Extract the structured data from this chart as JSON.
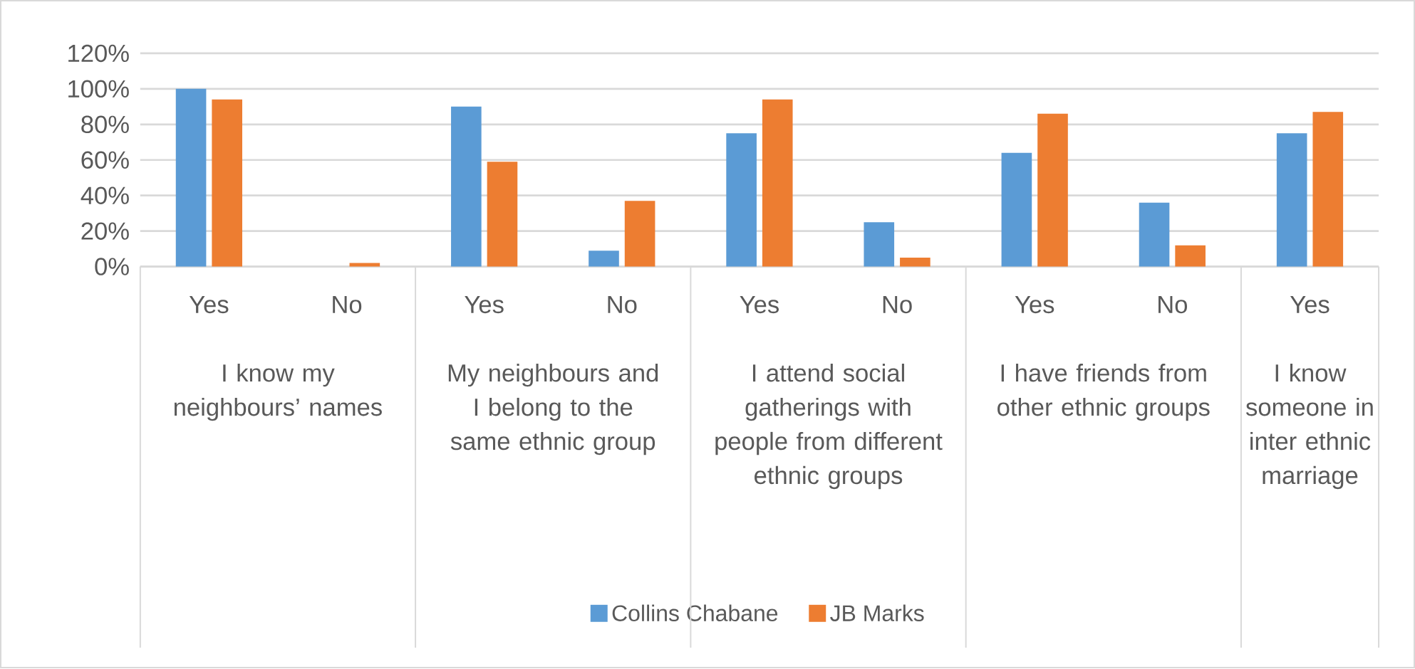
{
  "chart_data": {
    "type": "bar",
    "categories": [
      "Yes",
      "No",
      "Yes",
      "No",
      "Yes",
      "No",
      "Yes",
      "No",
      "Yes"
    ],
    "series": [
      {
        "name": "Collins Chabane",
        "color": "#5b9bd5",
        "values": [
          100,
          0,
          90,
          9,
          75,
          25,
          64,
          36,
          75
        ]
      },
      {
        "name": "JB Marks",
        "color": "#ed7d31",
        "values": [
          94,
          2,
          59,
          37,
          94,
          5,
          86,
          12,
          87
        ]
      }
    ],
    "annotations": [
      "I know my neighbours’ names",
      "My neighbours and I belong to the same ethnic group",
      "I attend social gatherings with people from different ethnic groups",
      "I have friends from other ethnic groups",
      "I know someone in inter ethnic marriage"
    ],
    "ylim": [
      0,
      120
    ],
    "yticks": [
      {
        "value": 0,
        "label": "0%"
      },
      {
        "value": 20,
        "label": "20%"
      },
      {
        "value": 40,
        "label": "40%"
      },
      {
        "value": 60,
        "label": "60%"
      },
      {
        "value": 80,
        "label": "80%"
      },
      {
        "value": 100,
        "label": "100%"
      },
      {
        "value": 120,
        "label": "120%"
      }
    ],
    "grid": "y",
    "legend": "bottom"
  }
}
